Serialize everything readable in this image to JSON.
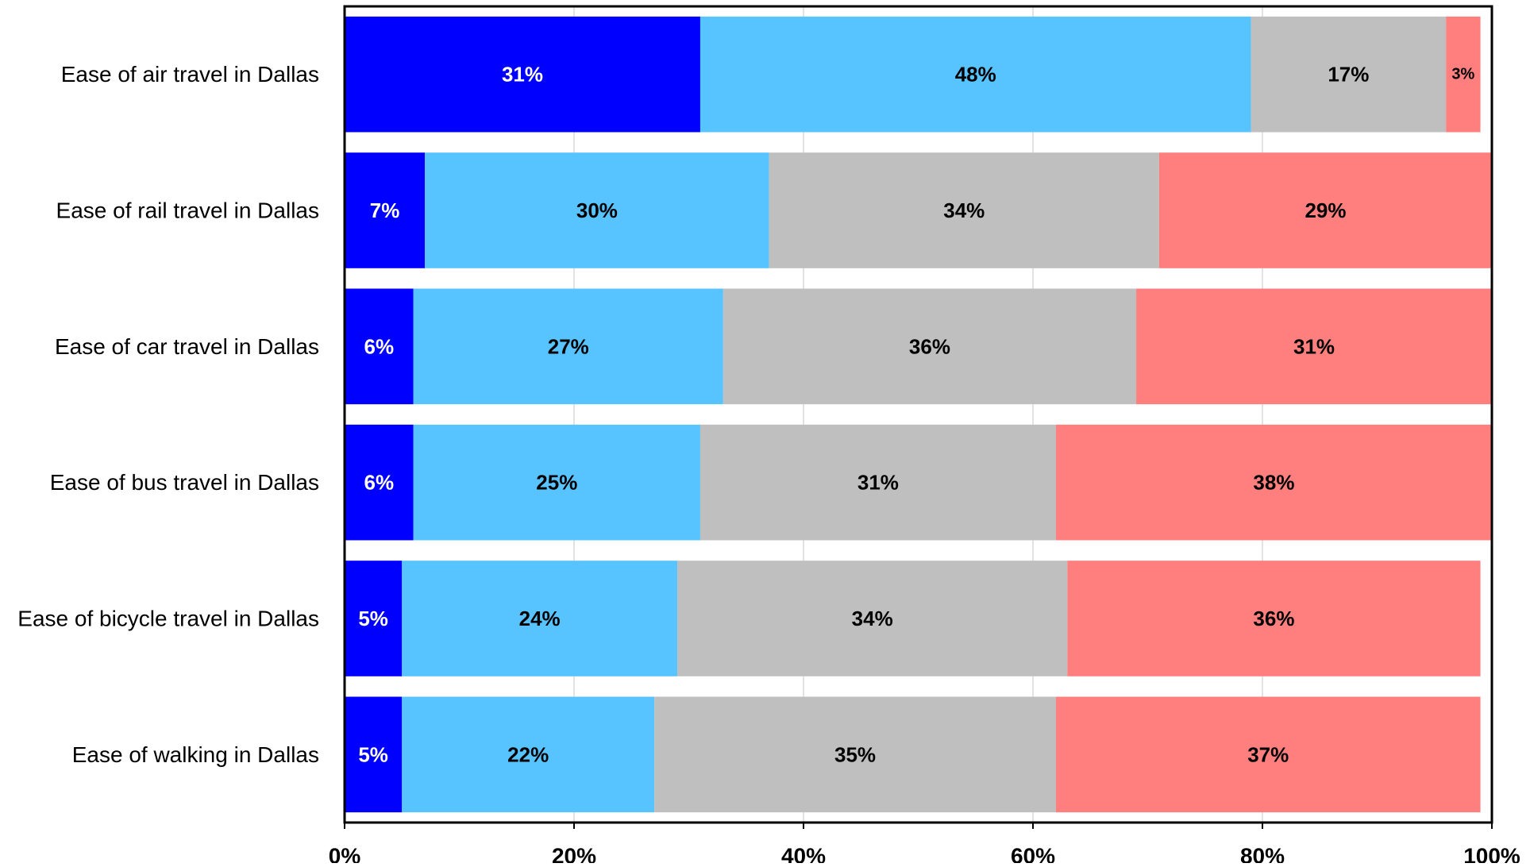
{
  "chart_data": {
    "type": "bar",
    "orientation": "horizontal",
    "stacked": true,
    "normalized": true,
    "categories": [
      "Ease of air travel in Dallas",
      "Ease of rail travel in Dallas",
      "Ease of car travel in Dallas",
      "Ease of bus travel in Dallas",
      "Ease of bicycle travel in Dallas",
      "Ease of walking in Dallas"
    ],
    "series": [
      {
        "color": "#0000FF",
        "label_color": "#FFFFFF",
        "values": [
          31,
          7,
          6,
          6,
          5,
          5
        ]
      },
      {
        "color": "#57C4FF",
        "label_color": "#000000",
        "values": [
          48,
          30,
          27,
          25,
          24,
          22
        ]
      },
      {
        "color": "#BFBFBF",
        "label_color": "#000000",
        "values": [
          17,
          34,
          36,
          31,
          34,
          35
        ]
      },
      {
        "color": "#FF7F7F",
        "label_color": "#000000",
        "values": [
          3,
          29,
          31,
          38,
          36,
          37
        ]
      }
    ],
    "xlim": [
      0,
      100
    ],
    "x_ticks": [
      "0%",
      "20%",
      "40%",
      "60%",
      "80%",
      "100%"
    ],
    "grid": true,
    "legend": "none",
    "title": "",
    "xlabel": "",
    "ylabel": ""
  }
}
